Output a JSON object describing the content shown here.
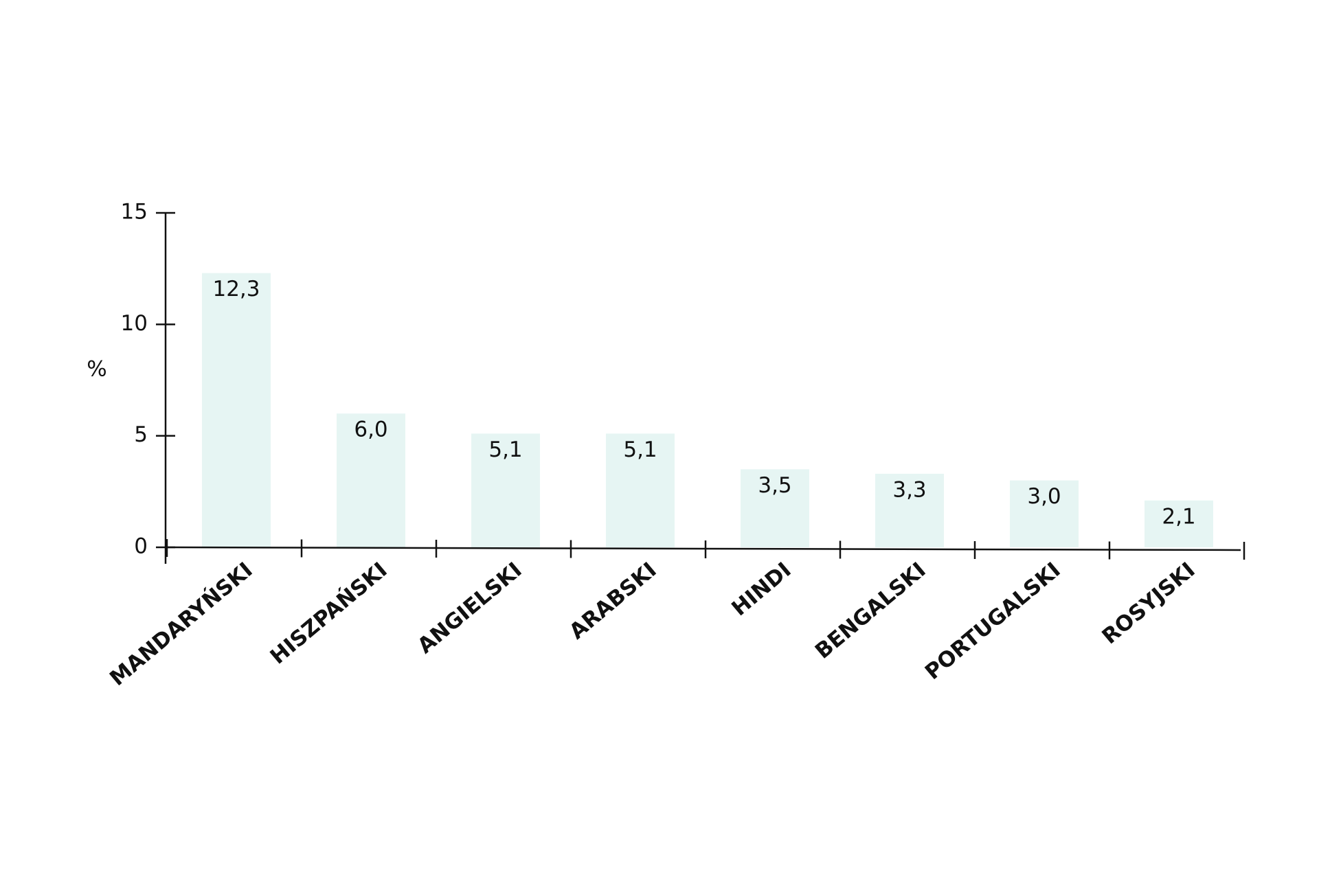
{
  "chart_data": {
    "type": "bar",
    "ylabel": "%",
    "categories": [
      "MANDARYŃSKI",
      "HISZPAŃSKI",
      "ANGIELSKI",
      "ARABSKI",
      "HINDI",
      "BENGALSKI",
      "PORTUGALSKI",
      "ROSYJSKI"
    ],
    "values": [
      12.3,
      6.0,
      5.1,
      5.1,
      3.5,
      3.3,
      3.0,
      2.1
    ],
    "value_labels": [
      "12,3",
      "6,0",
      "5,1",
      "5,1",
      "3,5",
      "3,3",
      "3,0",
      "2,1"
    ],
    "color": "#e6f5f3",
    "ylim": [
      0,
      15
    ],
    "yticks": [
      0,
      5,
      10,
      15
    ],
    "grid": false
  }
}
